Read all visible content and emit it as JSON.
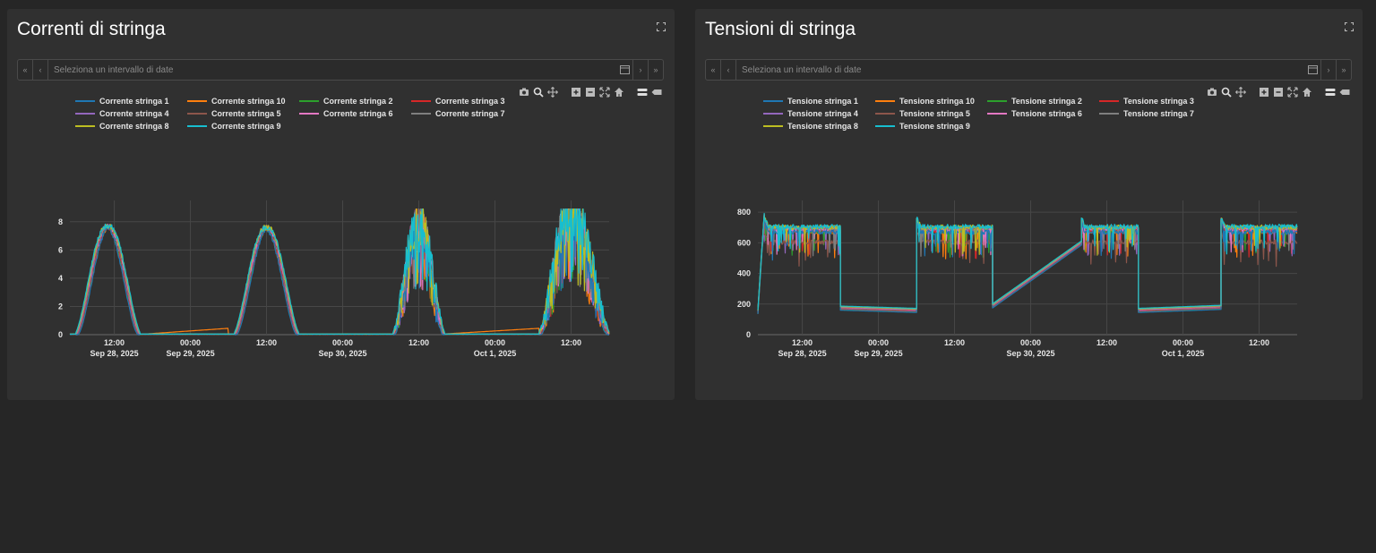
{
  "panels": [
    {
      "title": "Correnti di stringa",
      "date_placeholder": "Seleziona un intervallo di date",
      "nav": {
        "first": "«",
        "prev": "‹",
        "next": "›",
        "last": "»"
      }
    },
    {
      "title": "Tensioni di stringa",
      "date_placeholder": "Seleziona un intervallo di date",
      "nav": {
        "first": "«",
        "prev": "‹",
        "next": "›",
        "last": "»"
      }
    }
  ],
  "toolbar_icons": [
    "camera-icon",
    "zoom-icon",
    "pan-icon",
    "zoom-in-icon",
    "zoom-out-icon",
    "autoscale-icon",
    "home-icon",
    "spike-lines-icon",
    "compare-hover-icon"
  ],
  "colors": {
    "s1": "#1f77b4",
    "s10": "#ff7f0e",
    "s2": "#2ca02c",
    "s3": "#d62728",
    "s4": "#9467bd",
    "s5": "#8c564b",
    "s6": "#e377c2",
    "s7": "#7f7f7f",
    "s8": "#bcbd22",
    "s9": "#17becf"
  },
  "chart_data": [
    {
      "type": "line",
      "title": "Correnti di stringa",
      "xlabel": "",
      "ylabel": "",
      "ylim": [
        0,
        9
      ],
      "xlim": [
        "2025-09-28 05:00",
        "2025-10-01 18:00"
      ],
      "y_ticks": [
        0,
        2,
        4,
        6,
        8
      ],
      "x_ticks": [
        {
          "t": "2025-09-28 12:00",
          "label": "12:00",
          "sub": "Sep 28, 2025"
        },
        {
          "t": "2025-09-29 00:00",
          "label": "00:00",
          "sub": "Sep 29, 2025"
        },
        {
          "t": "2025-09-29 12:00",
          "label": "12:00",
          "sub": ""
        },
        {
          "t": "2025-09-30 00:00",
          "label": "00:00",
          "sub": "Sep 30, 2025"
        },
        {
          "t": "2025-09-30 12:00",
          "label": "12:00",
          "sub": ""
        },
        {
          "t": "2025-10-01 00:00",
          "label": "00:00",
          "sub": "Oct 1, 2025"
        },
        {
          "t": "2025-10-01 12:00",
          "label": "12:00",
          "sub": ""
        }
      ],
      "grid": true,
      "legend": "top",
      "series_names": [
        "Corrente stringa 1",
        "Corrente stringa 10",
        "Corrente stringa 2",
        "Corrente stringa 3",
        "Corrente stringa 4",
        "Corrente stringa 5",
        "Corrente stringa 6",
        "Corrente stringa 7",
        "Corrente stringa 8",
        "Corrente stringa 9"
      ],
      "series_colors": [
        "#1f77b4",
        "#ff7f0e",
        "#2ca02c",
        "#d62728",
        "#9467bd",
        "#8c564b",
        "#e377c2",
        "#7f7f7f",
        "#bcbd22",
        "#17becf"
      ],
      "days": [
        {
          "sunrise": "2025-09-28 06:00",
          "peak": "2025-09-28 11:00",
          "sunset": "2025-09-28 16:00",
          "peak_value": 7.7,
          "noisy": false
        },
        {
          "sunrise": "2025-09-29 07:00",
          "peak": "2025-09-29 12:00",
          "sunset": "2025-09-29 17:00",
          "peak_value": 7.6,
          "noisy": false
        },
        {
          "sunrise": "2025-09-30 08:00",
          "peak": "2025-09-30 12:00",
          "sunset": "2025-09-30 16:00",
          "peak_value": 7.8,
          "noisy": true
        },
        {
          "sunrise": "2025-10-01 07:00",
          "peak": "2025-10-01 12:00",
          "sunset": "2025-10-01 18:00",
          "peak_value": 8.8,
          "noisy": true
        }
      ]
    },
    {
      "type": "line",
      "title": "Tensioni di stringa",
      "xlabel": "",
      "ylabel": "",
      "ylim": [
        0,
        830
      ],
      "xlim": [
        "2025-09-28 05:00",
        "2025-10-01 18:00"
      ],
      "y_ticks": [
        0,
        200,
        400,
        600,
        800
      ],
      "x_ticks": [
        {
          "t": "2025-09-28 12:00",
          "label": "12:00",
          "sub": "Sep 28, 2025"
        },
        {
          "t": "2025-09-29 00:00",
          "label": "00:00",
          "sub": "Sep 29, 2025"
        },
        {
          "t": "2025-09-29 12:00",
          "label": "12:00",
          "sub": ""
        },
        {
          "t": "2025-09-30 00:00",
          "label": "00:00",
          "sub": "Sep 30, 2025"
        },
        {
          "t": "2025-09-30 12:00",
          "label": "12:00",
          "sub": ""
        },
        {
          "t": "2025-10-01 00:00",
          "label": "00:00",
          "sub": "Oct 1, 2025"
        },
        {
          "t": "2025-10-01 12:00",
          "label": "12:00",
          "sub": ""
        }
      ],
      "grid": true,
      "legend": "top",
      "series_names": [
        "Tensione stringa 1",
        "Tensione stringa 10",
        "Tensione stringa 2",
        "Tensione stringa 3",
        "Tensione stringa 4",
        "Tensione stringa 5",
        "Tensione stringa 6",
        "Tensione stringa 7",
        "Tensione stringa 8",
        "Tensione stringa 9"
      ],
      "series_colors": [
        "#1f77b4",
        "#ff7f0e",
        "#2ca02c",
        "#d62728",
        "#9467bd",
        "#8c564b",
        "#e377c2",
        "#7f7f7f",
        "#bcbd22",
        "#17becf"
      ],
      "segments": [
        {
          "from": "2025-09-28 05:00",
          "to": "2025-09-28 06:00",
          "start": 150,
          "end": 780
        },
        {
          "from": "2025-09-28 06:00",
          "to": "2025-09-28 18:00",
          "level": 690,
          "noisy": true
        },
        {
          "from": "2025-09-28 18:00",
          "to": "2025-09-29 06:00",
          "start": 175,
          "end": 160
        },
        {
          "from": "2025-09-29 06:00",
          "to": "2025-09-29 18:00",
          "level": 690,
          "noisy": true
        },
        {
          "from": "2025-09-29 18:00",
          "to": "2025-09-30 08:00",
          "start": 190,
          "end": 600
        },
        {
          "from": "2025-09-30 08:00",
          "to": "2025-09-30 17:00",
          "level": 690,
          "noisy": true
        },
        {
          "from": "2025-09-30 17:00",
          "to": "2025-10-01 06:00",
          "start": 160,
          "end": 180
        },
        {
          "from": "2025-10-01 06:00",
          "to": "2025-10-01 18:00",
          "level": 690,
          "noisy": true
        }
      ]
    }
  ]
}
